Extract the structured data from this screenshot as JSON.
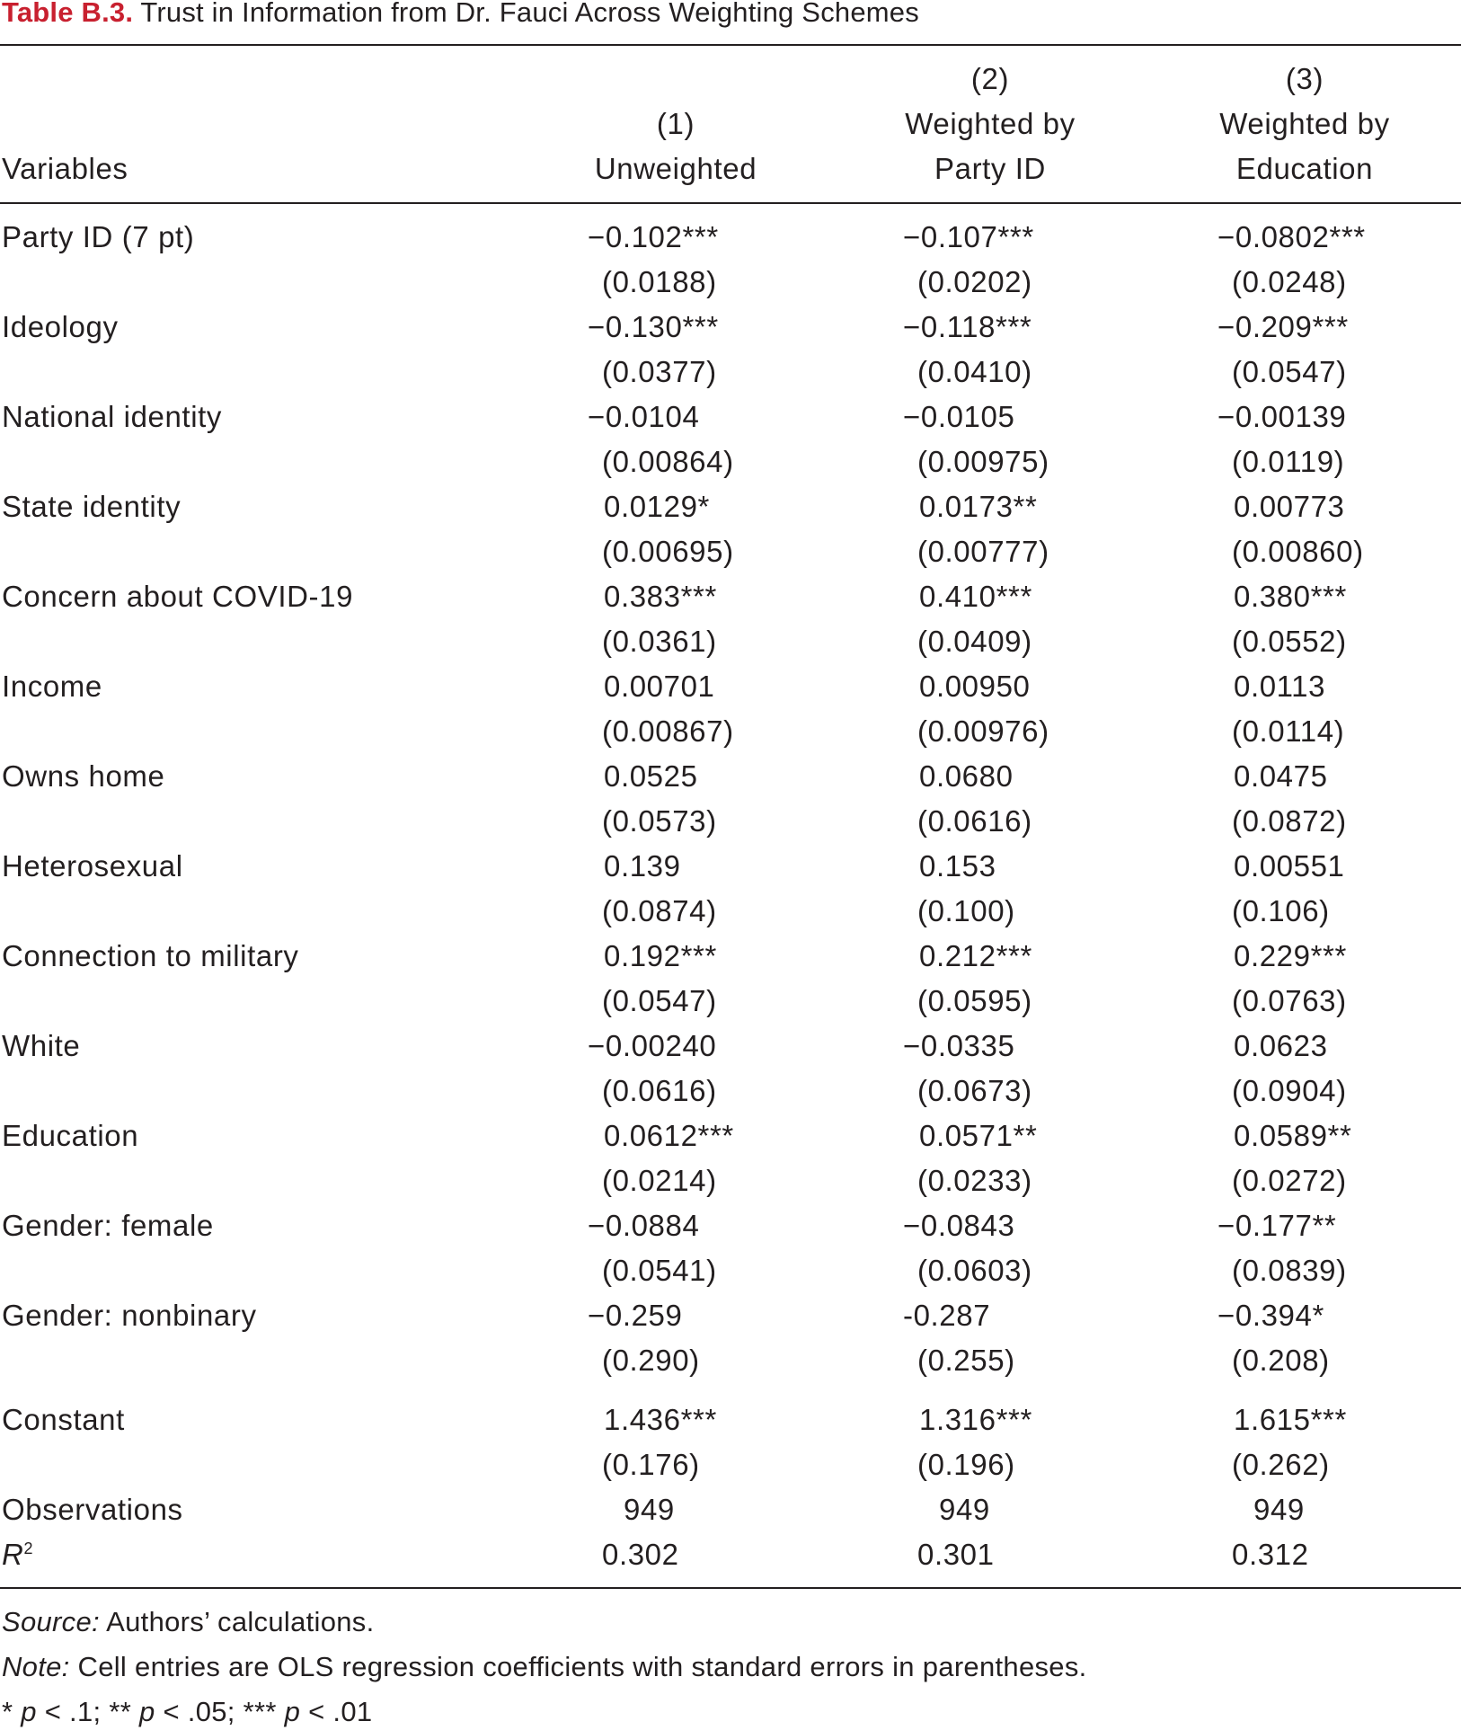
{
  "title": {
    "label": "Table B.3.",
    "text": "Trust in Information from Dr. Fauci Across Weighting Schemes"
  },
  "columns": {
    "variables_header": "Variables",
    "col1": {
      "num": "(1)",
      "line1": "Unweighted"
    },
    "col2": {
      "num": "(2)",
      "line1": "Weighted by",
      "line2": "Party ID"
    },
    "col3": {
      "num": "(3)",
      "line1": "Weighted by",
      "line2": "Education"
    }
  },
  "rows": [
    {
      "label": "Party ID (7 pt)",
      "c1": "−0.102***",
      "c2": "−0.107***",
      "c3": "−0.0802***",
      "s1": "(0.0188)",
      "s2": "(0.0202)",
      "s3": "(0.0248)"
    },
    {
      "label": "Ideology",
      "c1": "−0.130***",
      "c2": "−0.118***",
      "c3": "−0.209***",
      "s1": "(0.0377)",
      "s2": "(0.0410)",
      "s3": "(0.0547)"
    },
    {
      "label": "National identity",
      "c1": "−0.0104",
      "c2": "−0.0105",
      "c3": "−0.00139",
      "s1": "(0.00864)",
      "s2": "(0.00975)",
      "s3": "(0.0119)"
    },
    {
      "label": "State identity",
      "c1": "0.0129*",
      "c2": "0.0173**",
      "c3": "0.00773",
      "s1": "(0.00695)",
      "s2": "(0.00777)",
      "s3": "(0.00860)"
    },
    {
      "label": "Concern about COVID-19",
      "c1": "0.383***",
      "c2": "0.410***",
      "c3": "0.380***",
      "s1": "(0.0361)",
      "s2": "(0.0409)",
      "s3": "(0.0552)"
    },
    {
      "label": "Income",
      "c1": "0.00701",
      "c2": "0.00950",
      "c3": "0.0113",
      "s1": "(0.00867)",
      "s2": "(0.00976)",
      "s3": "(0.0114)"
    },
    {
      "label": "Owns home",
      "c1": "0.0525",
      "c2": "0.0680",
      "c3": "0.0475",
      "s1": "(0.0573)",
      "s2": "(0.0616)",
      "s3": "(0.0872)"
    },
    {
      "label": "Heterosexual",
      "c1": "0.139",
      "c2": "0.153",
      "c3": "0.00551",
      "s1": "(0.0874)",
      "s2": "(0.100)",
      "s3": "(0.106)"
    },
    {
      "label": "Connection to military",
      "c1": "0.192***",
      "c2": "0.212***",
      "c3": "0.229***",
      "s1": "(0.0547)",
      "s2": "(0.0595)",
      "s3": "(0.0763)"
    },
    {
      "label": "White",
      "c1": "−0.00240",
      "c2": "−0.0335",
      "c3": "0.0623",
      "s1": "(0.0616)",
      "s2": "(0.0673)",
      "s3": "(0.0904)"
    },
    {
      "label": "Education",
      "c1": "0.0612***",
      "c2": "0.0571**",
      "c3": "0.0589**",
      "s1": "(0.0214)",
      "s2": "(0.0233)",
      "s3": "(0.0272)"
    },
    {
      "label": "Gender: female",
      "c1": "−0.0884",
      "c2": "−0.0843",
      "c3": "−0.177**",
      "s1": "(0.0541)",
      "s2": "(0.0603)",
      "s3": "(0.0839)"
    },
    {
      "label": "Gender: nonbinary",
      "c1": "−0.259",
      "c2": "-0.287",
      "c3": "−0.394*",
      "s1": "(0.290)",
      "s2": "(0.255)",
      "s3": "(0.208)"
    }
  ],
  "constant": {
    "label": "Constant",
    "c1": "1.436***",
    "c2": "1.316***",
    "c3": "1.615***",
    "s1": "(0.176)",
    "s2": "(0.196)",
    "s3": "(0.262)"
  },
  "observations": {
    "label": "Observations",
    "c1": "949",
    "c2": "949",
    "c3": "949"
  },
  "r2": {
    "label": "R",
    "sup": "2",
    "c1": "0.302",
    "c2": "0.301",
    "c3": "0.312"
  },
  "notes": {
    "source_label": "Source:",
    "source_text": " Authors’ calculations.",
    "note_label": "Note:",
    "note_text": " Cell entries are OLS regression coefficients with standard errors in parentheses.",
    "sig": [
      {
        "pre": "* ",
        "p": "p",
        "post": " < .1; "
      },
      {
        "pre": "** ",
        "p": "p",
        "post": " < .05; "
      },
      {
        "pre": "*** ",
        "p": "p",
        "post": " < .01"
      }
    ]
  }
}
